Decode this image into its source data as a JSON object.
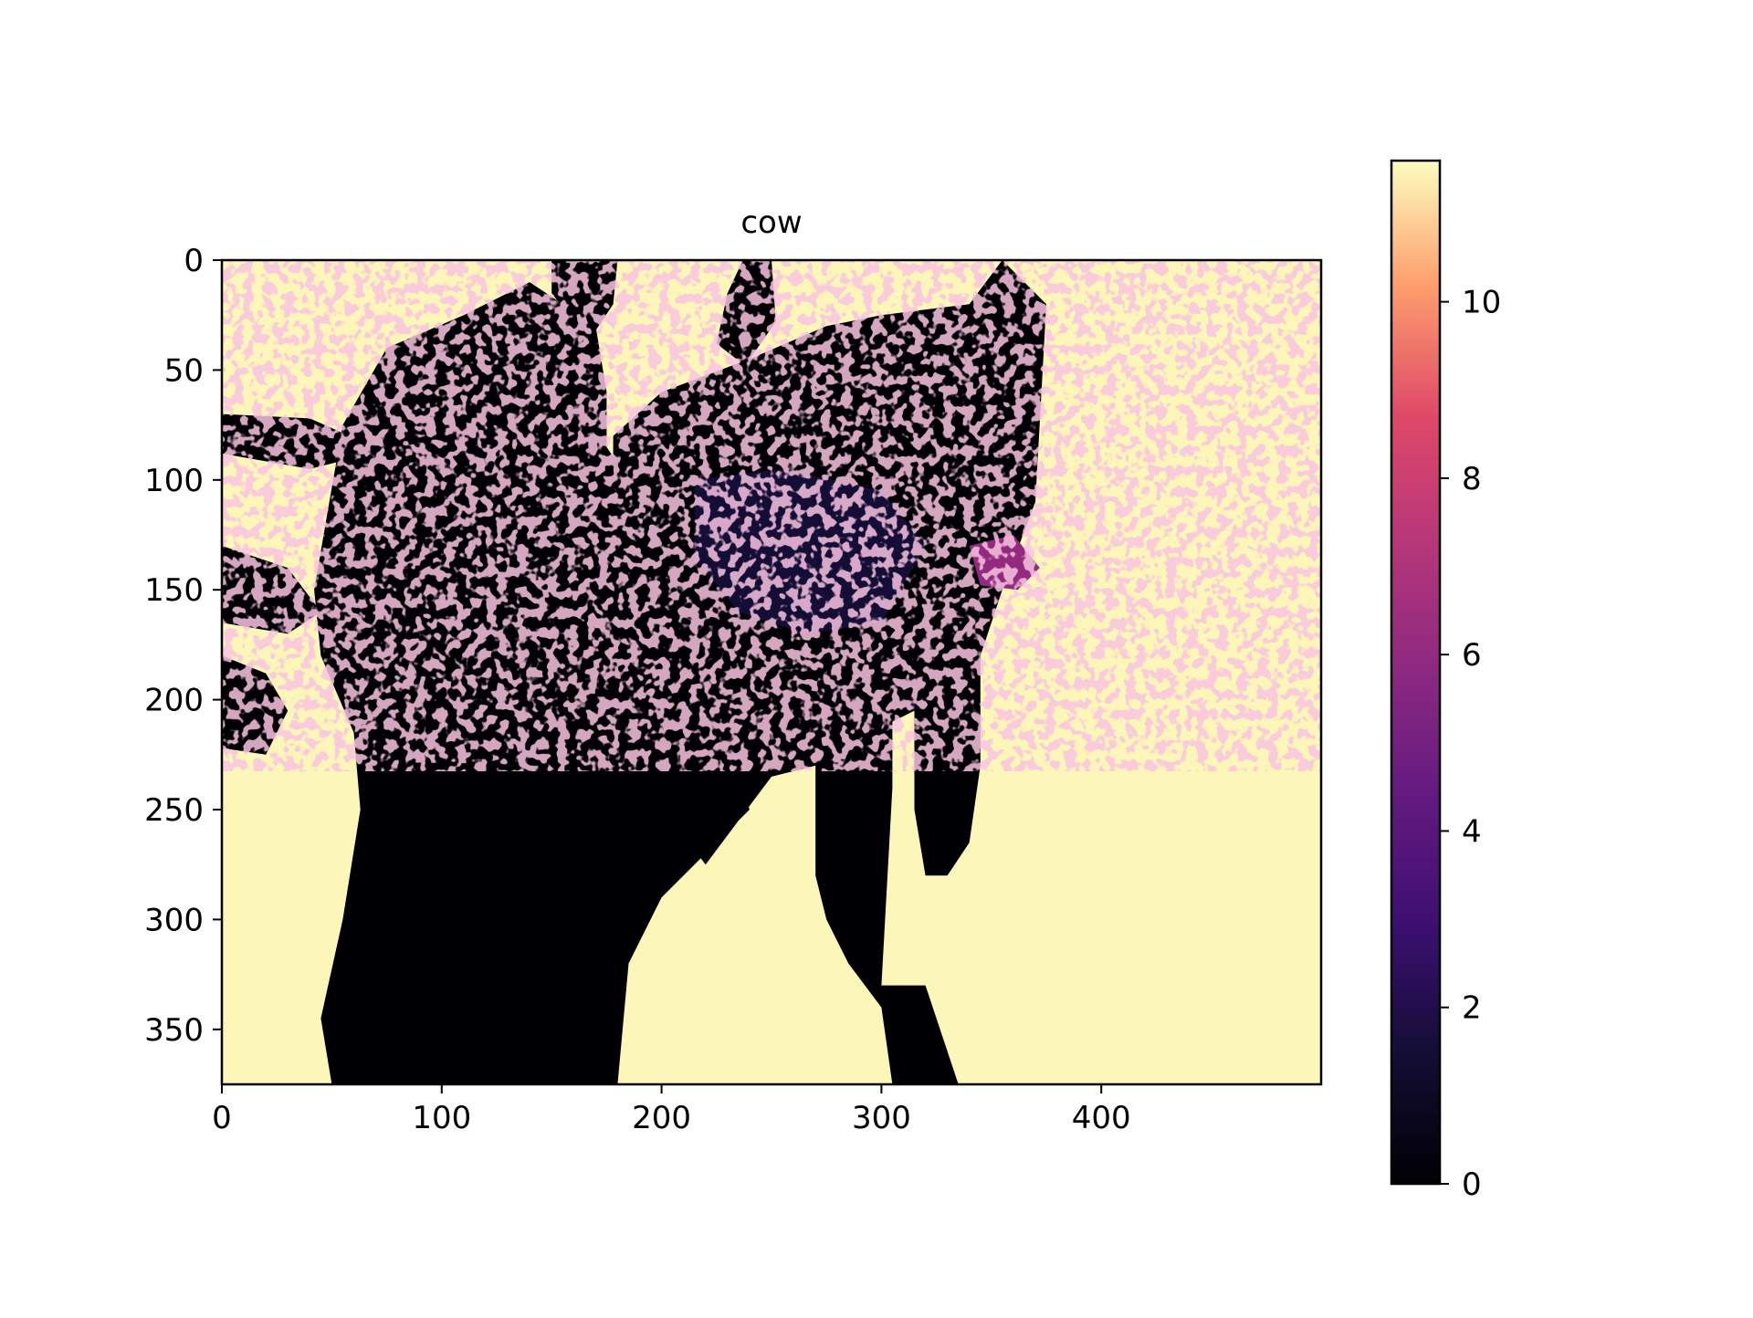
{
  "chart_data": {
    "type": "heatmap",
    "title": "cow",
    "xlabel": "",
    "ylabel": "",
    "x_range": [
      0,
      500
    ],
    "y_range": [
      0,
      375
    ],
    "y_inverted": true,
    "x_ticks": [
      0,
      100,
      200,
      300,
      400
    ],
    "y_ticks": [
      0,
      50,
      100,
      150,
      200,
      250,
      300,
      350
    ],
    "colormap": "magma",
    "colorbar": {
      "range": [
        0,
        11.6
      ],
      "ticks": [
        0,
        2,
        4,
        6,
        8,
        10
      ]
    },
    "regions": [
      {
        "name": "background",
        "value": 11.5
      },
      {
        "name": "cow-body",
        "value": 0
      },
      {
        "name": "cow-head",
        "value": 1.5
      },
      {
        "name": "noise-speckle",
        "value": 6
      }
    ],
    "grid": false
  }
}
